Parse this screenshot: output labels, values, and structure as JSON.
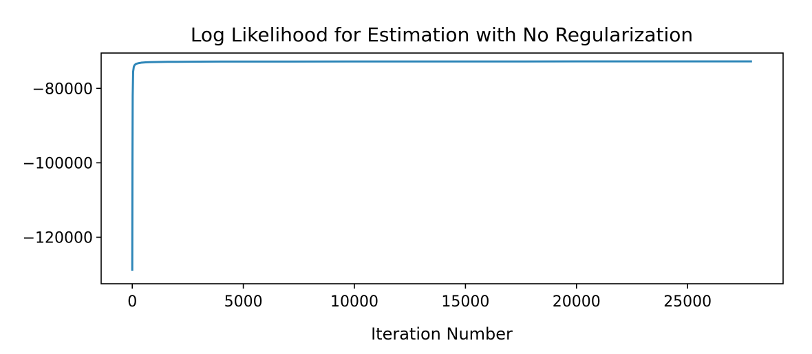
{
  "chart_data": {
    "type": "line",
    "title": "Log Likelihood for Estimation with No Regularization",
    "xlabel": "Iteration Number",
    "ylabel": "",
    "xlim": [
      -1400,
      29300
    ],
    "ylim": [
      -132500,
      -70500
    ],
    "xticks": [
      0,
      5000,
      10000,
      15000,
      20000,
      25000
    ],
    "xtick_labels": [
      "0",
      "5000",
      "10000",
      "15000",
      "20000",
      "25000"
    ],
    "yticks": [
      -80000,
      -100000,
      -120000
    ],
    "ytick_labels": [
      "−80000",
      "−100000",
      "−120000"
    ],
    "grid": false,
    "line_color": "#2e86b8",
    "series": [
      {
        "x": [
          0,
          10,
          20,
          40,
          70,
          100,
          150,
          200,
          300,
          400,
          600,
          800,
          1200,
          1600,
          2000,
          3000,
          4000,
          5000,
          7000,
          10000,
          15000,
          20000,
          25000,
          27900
        ],
        "y": [
          -129000,
          -100000,
          -82000,
          -75500,
          -74200,
          -73800,
          -73500,
          -73350,
          -73200,
          -73100,
          -73000,
          -72950,
          -72900,
          -72870,
          -72850,
          -72820,
          -72800,
          -72790,
          -72780,
          -72770,
          -72760,
          -72755,
          -72750,
          -72750
        ]
      }
    ]
  }
}
